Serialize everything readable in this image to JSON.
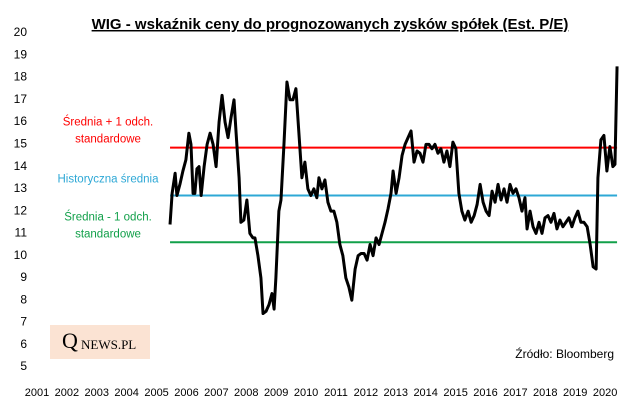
{
  "chart_data": {
    "type": "line",
    "title": "WIG - wskaźnik ceny do prognozowanych zysków spółek (Est. P/E)",
    "source": "Źródło: Bloomberg",
    "logo": [
      "Q",
      "NEWS.PL"
    ],
    "color": "#000000",
    "grid": false,
    "xlim": [
      2000.7,
      2021
    ],
    "xticks": [
      2001,
      2002,
      2003,
      2004,
      2005,
      2006,
      2007,
      2008,
      2009,
      2010,
      2011,
      2012,
      2013,
      2014,
      2015,
      2016,
      2017,
      2018,
      2019,
      2020
    ],
    "ylim": [
      5,
      20
    ],
    "yticks": [
      5,
      6,
      7,
      8,
      9,
      10,
      11,
      12,
      13,
      14,
      15,
      16,
      17,
      18,
      19,
      20
    ],
    "reference_lines": [
      {
        "value": 14.85,
        "color": "#ff0000",
        "label": [
          "Średnia + 1 odch.",
          "standardowe"
        ]
      },
      {
        "value": 12.7,
        "color": "#2ea8d6",
        "label": [
          "Historyczna średnia"
        ]
      },
      {
        "value": 10.6,
        "color": "#12a04a",
        "label": [
          "Średnia - 1 odch.",
          "standardowe"
        ]
      }
    ],
    "x": [
      2005.45,
      2005.52,
      2005.62,
      2005.68,
      2005.78,
      2005.88,
      2005.98,
      2006.08,
      2006.15,
      2006.22,
      2006.28,
      2006.35,
      2006.42,
      2006.49,
      2006.59,
      2006.69,
      2006.79,
      2006.89,
      2006.99,
      2007.09,
      2007.19,
      2007.29,
      2007.39,
      2007.49,
      2007.59,
      2007.66,
      2007.76,
      2007.82,
      2007.92,
      2008.02,
      2008.12,
      2008.22,
      2008.29,
      2008.39,
      2008.49,
      2008.56,
      2008.66,
      2008.76,
      2008.86,
      2008.93,
      2008.99,
      2009.09,
      2009.16,
      2009.26,
      2009.36,
      2009.46,
      2009.56,
      2009.66,
      2009.76,
      2009.86,
      2009.96,
      2010.06,
      2010.16,
      2010.26,
      2010.36,
      2010.43,
      2010.53,
      2010.63,
      2010.73,
      2010.83,
      2010.93,
      2011.03,
      2011.13,
      2011.23,
      2011.33,
      2011.43,
      2011.53,
      2011.64,
      2011.74,
      2011.84,
      2011.94,
      2012.04,
      2012.14,
      2012.24,
      2012.34,
      2012.44,
      2012.54,
      2012.64,
      2012.74,
      2012.84,
      2012.91,
      2013.01,
      2013.11,
      2013.21,
      2013.31,
      2013.41,
      2013.51,
      2013.61,
      2013.71,
      2013.81,
      2013.91,
      2014.01,
      2014.11,
      2014.21,
      2014.31,
      2014.41,
      2014.51,
      2014.61,
      2014.71,
      2014.81,
      2014.91,
      2015.01,
      2015.11,
      2015.21,
      2015.31,
      2015.42,
      2015.52,
      2015.62,
      2015.72,
      2015.82,
      2015.92,
      2016.02,
      2016.12,
      2016.22,
      2016.32,
      2016.42,
      2016.52,
      2016.62,
      2016.72,
      2016.82,
      2016.92,
      2017.02,
      2017.12,
      2017.22,
      2017.32,
      2017.39,
      2017.49,
      2017.59,
      2017.69,
      2017.79,
      2017.89,
      2017.99,
      2018.09,
      2018.19,
      2018.29,
      2018.39,
      2018.49,
      2018.59,
      2018.69,
      2018.79,
      2018.89,
      2018.99,
      2019.09,
      2019.19,
      2019.29,
      2019.4,
      2019.5,
      2019.6,
      2019.7,
      2019.76,
      2019.86,
      2019.96,
      2020.06,
      2020.16,
      2020.26,
      2020.33,
      2020.4
    ],
    "values": [
      11.4,
      12.8,
      13.7,
      12.7,
      13.2,
      13.8,
      14.3,
      15.5,
      15.0,
      12.8,
      12.8,
      13.9,
      14.0,
      12.7,
      14.0,
      15.0,
      15.5,
      15.0,
      14.0,
      16.0,
      17.2,
      16.0,
      15.3,
      16.2,
      17.0,
      15.5,
      13.5,
      11.5,
      11.6,
      12.5,
      11.0,
      10.8,
      10.8,
      10.0,
      9.0,
      7.4,
      7.5,
      7.8,
      8.3,
      7.6,
      9.0,
      12.0,
      12.5,
      15.0,
      17.8,
      17.0,
      17.0,
      17.5,
      15.5,
      13.5,
      14.2,
      13.0,
      12.7,
      13.0,
      12.6,
      13.5,
      13.0,
      13.4,
      12.4,
      12.0,
      12.0,
      11.5,
      10.5,
      10.0,
      9.0,
      8.6,
      8.0,
      9.4,
      10.0,
      10.1,
      10.1,
      9.8,
      10.5,
      10.0,
      10.8,
      10.5,
      11.0,
      11.5,
      12.1,
      12.8,
      13.8,
      12.8,
      13.5,
      14.5,
      15.0,
      15.3,
      15.6,
      14.2,
      14.7,
      14.6,
      14.2,
      15.0,
      15.0,
      14.8,
      15.0,
      14.6,
      14.8,
      14.2,
      14.7,
      14.0,
      15.1,
      14.8,
      12.8,
      12.0,
      11.6,
      12.0,
      11.5,
      11.8,
      12.3,
      13.2,
      12.4,
      12.0,
      11.8,
      12.9,
      12.4,
      13.2,
      12.5,
      13.0,
      12.4,
      13.2,
      12.8,
      13.0,
      12.6,
      12.0,
      12.6,
      11.2,
      12.0,
      11.3,
      11.0,
      11.5,
      11.0,
      11.7,
      11.8,
      11.5,
      11.9,
      11.2,
      11.6,
      11.3,
      11.5,
      11.7,
      11.3,
      11.7,
      12.0,
      11.5,
      11.5,
      11.3,
      10.5,
      9.5,
      9.4,
      13.5,
      15.2,
      15.4,
      13.8,
      14.9,
      14.0,
      14.1,
      18.5
    ]
  }
}
